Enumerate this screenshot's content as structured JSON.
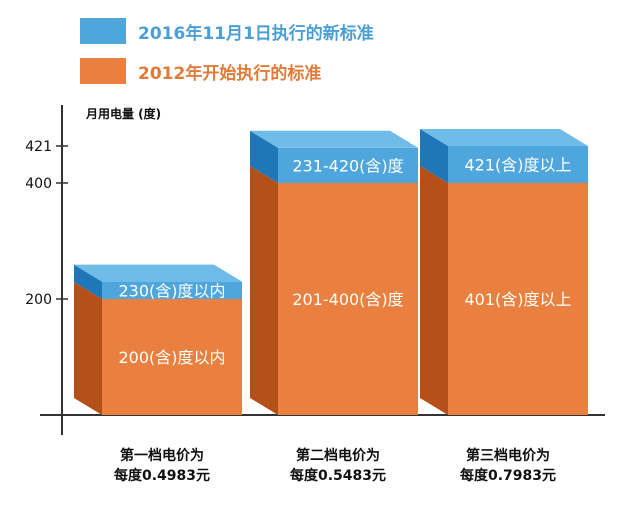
{
  "colors": {
    "new_front": "#4ea6dc",
    "new_top": "#6fbce8",
    "new_side": "#1f77b7",
    "old_front": "#e9803f",
    "old_side": "#b5501a",
    "axis": "#333333"
  },
  "legend": [
    {
      "label": "2016年11月1日执行的新标准",
      "color": "#4ea6dc",
      "text_color": "#4a9fd5"
    },
    {
      "label": "2012年开始执行的标准",
      "color": "#e9803f",
      "text_color": "#e07b39"
    }
  ],
  "chart_data": {
    "type": "bar",
    "ylabel": "月用电量 (度)",
    "y_ticks": [
      200,
      400,
      421
    ],
    "ylim": [
      0,
      520
    ],
    "categories": [
      {
        "label_line1": "第一档电价为",
        "label_line2": "每度0.4983元"
      },
      {
        "label_line1": "第二档电价为",
        "label_line2": "每度0.5483元"
      },
      {
        "label_line1": "第三档电价为",
        "label_line2": "每度0.7983元"
      }
    ],
    "series": [
      {
        "name": "2012年开始执行的标准",
        "values": [
          200,
          400,
          400
        ],
        "labels": [
          "200(含)度以内",
          "201-400(含)度",
          "401(含)度以上"
        ]
      },
      {
        "name": "2016年11月1日执行的新标准",
        "values": [
          230,
          420,
          421
        ],
        "labels": [
          "230(含)度以内",
          "231-420(含)度",
          "421(含)度以上"
        ]
      }
    ]
  }
}
